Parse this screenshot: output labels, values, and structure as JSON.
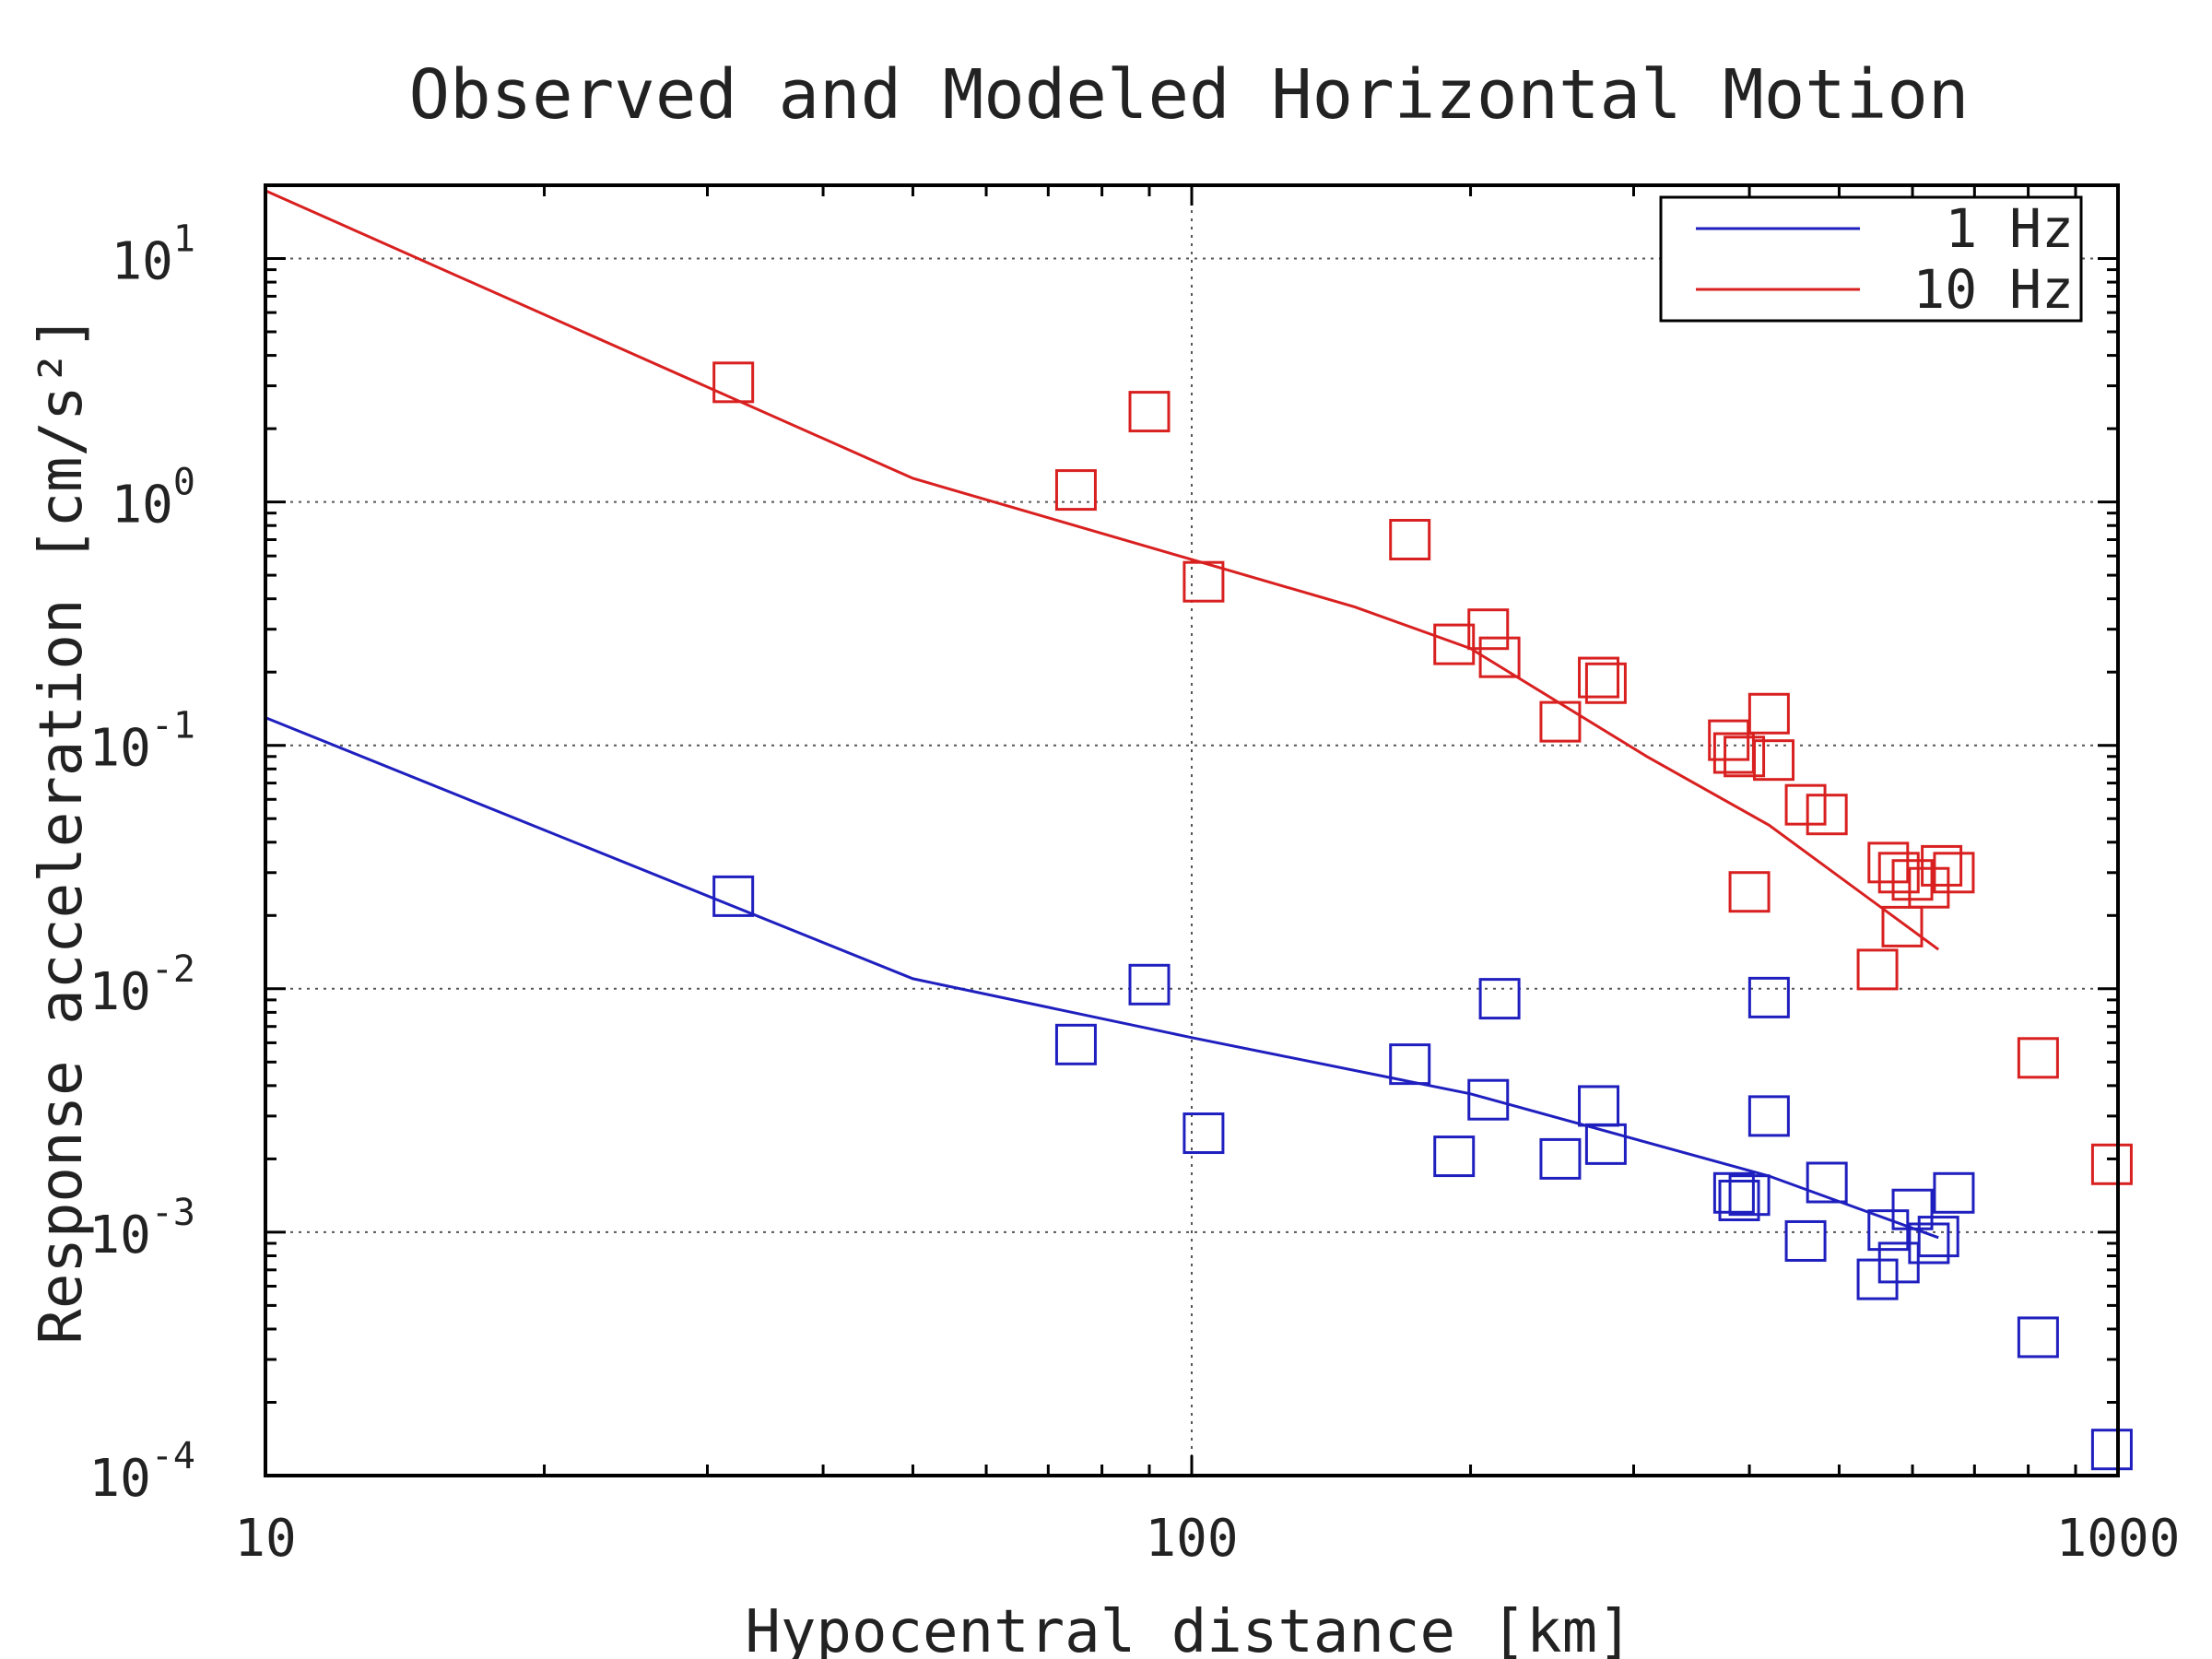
{
  "chart_data": {
    "type": "scatter",
    "title": "Observed and Modeled Horizontal Motion",
    "xlabel": "Hypocentral distance [km]",
    "ylabel": "Response acceleration [cm/s²]",
    "x_scale": "log",
    "y_scale": "log",
    "xlim": [
      10,
      1000
    ],
    "ylim": [
      0.0001,
      20
    ],
    "grid": true,
    "legend_position": "top-right",
    "x_ticks": [
      "10",
      "100",
      "1000"
    ],
    "y_ticks": [
      {
        "value": 10,
        "mantissa": "10",
        "exponent": "1"
      },
      {
        "value": 1,
        "mantissa": "10",
        "exponent": "0"
      },
      {
        "value": 0.1,
        "mantissa": "10",
        "exponent": "-1"
      },
      {
        "value": 0.01,
        "mantissa": "10",
        "exponent": "-2"
      },
      {
        "value": 0.001,
        "mantissa": "10",
        "exponent": "-3"
      },
      {
        "value": 0.0001,
        "mantissa": "10",
        "exponent": "-4"
      }
    ],
    "series": [
      {
        "name": "1 Hz",
        "color": "#1f1fbf",
        "model_x": [
          10,
          50,
          100,
          200,
          420,
          640
        ],
        "model_y": [
          0.13,
          0.011,
          0.0063,
          0.0037,
          0.0017,
          0.00095
        ],
        "observed": [
          {
            "x": 32,
            "y": 0.024
          },
          {
            "x": 75,
            "y": 0.0059
          },
          {
            "x": 90,
            "y": 0.0104
          },
          {
            "x": 103,
            "y": 0.00255
          },
          {
            "x": 172,
            "y": 0.0049
          },
          {
            "x": 192,
            "y": 0.00205
          },
          {
            "x": 209,
            "y": 0.0035
          },
          {
            "x": 215,
            "y": 0.0091
          },
          {
            "x": 250,
            "y": 0.002
          },
          {
            "x": 275,
            "y": 0.0033
          },
          {
            "x": 280,
            "y": 0.0023
          },
          {
            "x": 385,
            "y": 0.00145
          },
          {
            "x": 390,
            "y": 0.00135
          },
          {
            "x": 400,
            "y": 0.00142
          },
          {
            "x": 420,
            "y": 0.0092
          },
          {
            "x": 420,
            "y": 0.003
          },
          {
            "x": 460,
            "y": 0.00092
          },
          {
            "x": 485,
            "y": 0.0016
          },
          {
            "x": 550,
            "y": 0.00064
          },
          {
            "x": 565,
            "y": 0.00102
          },
          {
            "x": 580,
            "y": 0.00075
          },
          {
            "x": 600,
            "y": 0.00124
          },
          {
            "x": 625,
            "y": 0.0009
          },
          {
            "x": 640,
            "y": 0.00096
          },
          {
            "x": 665,
            "y": 0.00145
          },
          {
            "x": 820,
            "y": 0.00037
          },
          {
            "x": 985,
            "y": 0.000128
          }
        ]
      },
      {
        "name": "10 Hz",
        "color": "#d92020",
        "model_x": [
          10,
          50,
          100,
          150,
          200,
          310,
          420,
          640
        ],
        "model_y": [
          19,
          1.25,
          0.58,
          0.37,
          0.25,
          0.09,
          0.047,
          0.0145
        ],
        "observed": [
          {
            "x": 32,
            "y": 3.1
          },
          {
            "x": 75,
            "y": 1.12
          },
          {
            "x": 90,
            "y": 2.35
          },
          {
            "x": 103,
            "y": 0.47
          },
          {
            "x": 172,
            "y": 0.7
          },
          {
            "x": 192,
            "y": 0.26
          },
          {
            "x": 209,
            "y": 0.3
          },
          {
            "x": 215,
            "y": 0.23
          },
          {
            "x": 250,
            "y": 0.125
          },
          {
            "x": 275,
            "y": 0.19
          },
          {
            "x": 280,
            "y": 0.18
          },
          {
            "x": 380,
            "y": 0.105
          },
          {
            "x": 385,
            "y": 0.093
          },
          {
            "x": 395,
            "y": 0.09
          },
          {
            "x": 400,
            "y": 0.025
          },
          {
            "x": 420,
            "y": 0.135
          },
          {
            "x": 425,
            "y": 0.087
          },
          {
            "x": 460,
            "y": 0.057
          },
          {
            "x": 485,
            "y": 0.052
          },
          {
            "x": 550,
            "y": 0.012
          },
          {
            "x": 565,
            "y": 0.033
          },
          {
            "x": 580,
            "y": 0.03
          },
          {
            "x": 585,
            "y": 0.018
          },
          {
            "x": 600,
            "y": 0.028
          },
          {
            "x": 625,
            "y": 0.026
          },
          {
            "x": 645,
            "y": 0.032
          },
          {
            "x": 665,
            "y": 0.03
          },
          {
            "x": 820,
            "y": 0.0052
          },
          {
            "x": 985,
            "y": 0.0019
          }
        ]
      }
    ]
  }
}
